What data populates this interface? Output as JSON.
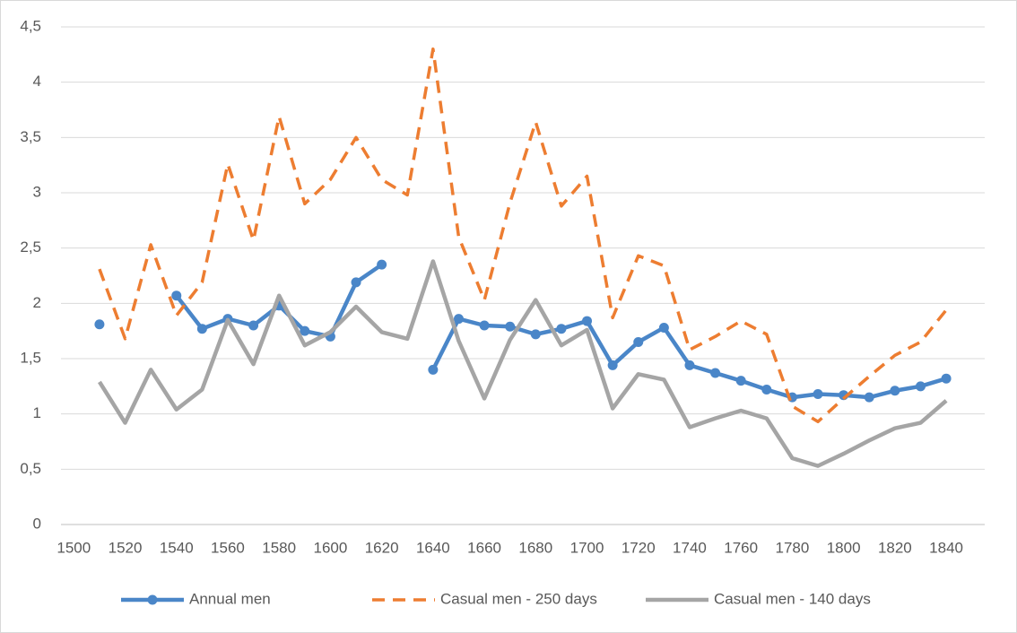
{
  "chart_data": {
    "type": "line",
    "x": [
      1510,
      1520,
      1530,
      1540,
      1550,
      1560,
      1570,
      1580,
      1590,
      1600,
      1610,
      1620,
      1630,
      1640,
      1650,
      1660,
      1670,
      1680,
      1690,
      1700,
      1710,
      1720,
      1730,
      1740,
      1750,
      1760,
      1770,
      1780,
      1790,
      1800,
      1810,
      1820,
      1830,
      1840
    ],
    "series": [
      {
        "name": "Annual men",
        "color": "#4a86c8",
        "style": "solid",
        "markers": true,
        "values": [
          1.81,
          null,
          null,
          2.07,
          1.77,
          1.86,
          1.8,
          1.98,
          1.75,
          1.7,
          2.19,
          2.35,
          null,
          1.4,
          1.86,
          1.8,
          1.79,
          1.72,
          1.77,
          1.84,
          1.44,
          1.65,
          1.78,
          1.44,
          1.37,
          1.3,
          1.22,
          1.15,
          1.18,
          1.17,
          1.15,
          1.21,
          1.25,
          1.32
        ]
      },
      {
        "name": "Casual men - 250 days",
        "color": "#ed7d31",
        "style": "dashed",
        "markers": false,
        "values": [
          2.31,
          1.68,
          2.53,
          1.89,
          2.19,
          3.26,
          2.57,
          3.69,
          2.9,
          3.12,
          3.5,
          3.12,
          2.98,
          4.3,
          2.6,
          2.03,
          2.91,
          3.64,
          2.88,
          3.15,
          1.87,
          2.43,
          2.34,
          1.58,
          1.7,
          1.84,
          1.72,
          1.07,
          0.93,
          1.14,
          1.34,
          1.53,
          1.65,
          1.94
        ]
      },
      {
        "name": "Casual men - 140 days",
        "color": "#a5a5a5",
        "style": "solid",
        "markers": false,
        "values": [
          1.29,
          0.92,
          1.4,
          1.04,
          1.22,
          1.85,
          1.45,
          2.07,
          1.62,
          1.74,
          1.97,
          1.74,
          1.68,
          2.38,
          1.66,
          1.14,
          1.67,
          2.03,
          1.62,
          1.76,
          1.05,
          1.36,
          1.31,
          0.88,
          0.96,
          1.03,
          0.96,
          0.6,
          0.53,
          0.64,
          0.76,
          0.87,
          0.92,
          1.12
        ]
      }
    ],
    "xlim": [
      1495,
      1855
    ],
    "xticks": [
      1500,
      1520,
      1540,
      1560,
      1580,
      1600,
      1620,
      1640,
      1660,
      1680,
      1700,
      1720,
      1740,
      1760,
      1780,
      1800,
      1820,
      1840
    ],
    "ylim": [
      0,
      4.5
    ],
    "yticks": [
      0,
      {
        "value": 0.5,
        "label": "0,5"
      },
      1,
      {
        "value": 1.5,
        "label": "1,5"
      },
      2,
      {
        "value": 2.5,
        "label": "2,5"
      },
      3,
      {
        "value": 3.5,
        "label": "3,5"
      },
      4,
      {
        "value": 4.5,
        "label": "4,5"
      }
    ],
    "grid": true,
    "legend": "bottom"
  }
}
